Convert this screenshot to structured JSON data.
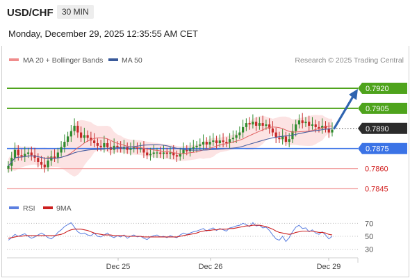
{
  "header": {
    "symbol": "USD/CHF",
    "timeframe": "30 MIN"
  },
  "timestamp": "Monday, December 29, 2025 12:35:55 AM CET",
  "legend": {
    "ma_bb": "MA 20 + Bollinger Bands",
    "ma50": "MA 50"
  },
  "watermark": "Research © 2025 Trading Central",
  "colors": {
    "resistance": "#4ea31c",
    "support_line": "#f2a3a3",
    "support_label": "#d22020",
    "pivot": "#3b73e6",
    "current": "#333333",
    "up_candle": "#2e8b2e",
    "down_candle": "#c62828",
    "band_fill": "#fbd9d9",
    "ma20": "#e06060",
    "ma50": "#4a5fa0",
    "rsi": "#5b7fe0",
    "rsi_ma": "#cc1f1f",
    "arrow": "#2f64b0"
  },
  "chart_data": [
    {
      "type": "candlestick",
      "ylim": [
        0.7838,
        0.7934
      ],
      "levels": [
        {
          "value": 0.792,
          "label": "0.7920",
          "kind": "resistance"
        },
        {
          "value": 0.7905,
          "label": "0.7905",
          "kind": "resistance"
        },
        {
          "value": 0.789,
          "label": "0.7890",
          "kind": "current"
        },
        {
          "value": 0.7875,
          "label": "0.7875",
          "kind": "pivot"
        },
        {
          "value": 0.786,
          "label": "0.7860",
          "kind": "support"
        },
        {
          "value": 0.7845,
          "label": "0.7845",
          "kind": "support"
        }
      ],
      "x_ticks": [
        "Dec 25",
        "Dec 26",
        "Dec 29"
      ],
      "close_path": [
        0.7862,
        0.7868,
        0.7874,
        0.787,
        0.7869,
        0.7871,
        0.7872,
        0.787,
        0.7868,
        0.7865,
        0.7863,
        0.7861,
        0.7866,
        0.7869,
        0.7868,
        0.7872,
        0.7876,
        0.788,
        0.7884,
        0.7888,
        0.7892,
        0.7887,
        0.7883,
        0.7885,
        0.7883,
        0.7881,
        0.7879,
        0.7877,
        0.7876,
        0.7879,
        0.7876,
        0.7874,
        0.7877,
        0.7876,
        0.7875,
        0.7876,
        0.7874,
        0.7875,
        0.7876,
        0.7875,
        0.7875,
        0.7872,
        0.787,
        0.7871,
        0.7872,
        0.7872,
        0.7871,
        0.7872,
        0.7871,
        0.7872,
        0.787,
        0.7869,
        0.7871,
        0.7874,
        0.7873,
        0.7875,
        0.7876,
        0.7877,
        0.7878,
        0.788,
        0.7878,
        0.788,
        0.7881,
        0.7879,
        0.7881,
        0.788,
        0.7879,
        0.7882,
        0.7883,
        0.7885,
        0.7887,
        0.7891,
        0.7894,
        0.7893,
        0.7895,
        0.7892,
        0.7894,
        0.7892,
        0.7893,
        0.789,
        0.7887,
        0.7883,
        0.7882,
        0.7884,
        0.788,
        0.7882,
        0.7888,
        0.7893,
        0.7896,
        0.7894,
        0.7895,
        0.7892,
        0.7893,
        0.7891,
        0.789,
        0.7892,
        0.789,
        0.7887,
        0.7889
      ],
      "forecast_target": 0.792
    },
    {
      "type": "line",
      "ylim": [
        20,
        80
      ],
      "y_ticks": [
        70,
        50,
        30
      ],
      "series": [
        {
          "name": "RSI",
          "values": [
            44,
            48,
            53,
            50,
            52,
            54,
            50,
            47,
            49,
            52,
            55,
            52,
            48,
            46,
            50,
            56,
            60,
            65,
            68,
            71,
            64,
            57,
            54,
            55,
            52,
            51,
            55,
            50,
            49,
            52,
            55,
            50,
            48,
            51,
            49,
            52,
            47,
            50,
            52,
            49,
            50,
            47,
            45,
            49,
            51,
            52,
            49,
            50,
            48,
            51,
            49,
            48,
            52,
            55,
            53,
            55,
            57,
            58,
            60,
            62,
            58,
            61,
            63,
            59,
            62,
            60,
            58,
            63,
            64,
            66,
            67,
            70,
            68,
            65,
            71,
            66,
            67,
            63,
            64,
            59,
            52,
            46,
            44,
            50,
            42,
            48,
            57,
            64,
            67,
            62,
            63,
            57,
            60,
            55,
            53,
            57,
            52,
            46,
            50
          ]
        },
        {
          "name": "9MA",
          "values": [
            47,
            48,
            49,
            50,
            50,
            51,
            51,
            51,
            51,
            51,
            51,
            51,
            51,
            51,
            51,
            52,
            53,
            55,
            58,
            60,
            61,
            61,
            61,
            60,
            59,
            57,
            55,
            54,
            53,
            52,
            52,
            52,
            51,
            51,
            51,
            51,
            50,
            50,
            50,
            50,
            50,
            49,
            49,
            49,
            49,
            49,
            49,
            49,
            49,
            49,
            49,
            49,
            50,
            51,
            52,
            53,
            54,
            55,
            57,
            58,
            59,
            59,
            60,
            60,
            61,
            61,
            61,
            62,
            62,
            63,
            64,
            65,
            66,
            66,
            67,
            67,
            67,
            66,
            65,
            63,
            61,
            58,
            56,
            55,
            54,
            53,
            54,
            56,
            57,
            58,
            58,
            58,
            58,
            57,
            56,
            56,
            55,
            53,
            52
          ]
        }
      ]
    }
  ]
}
